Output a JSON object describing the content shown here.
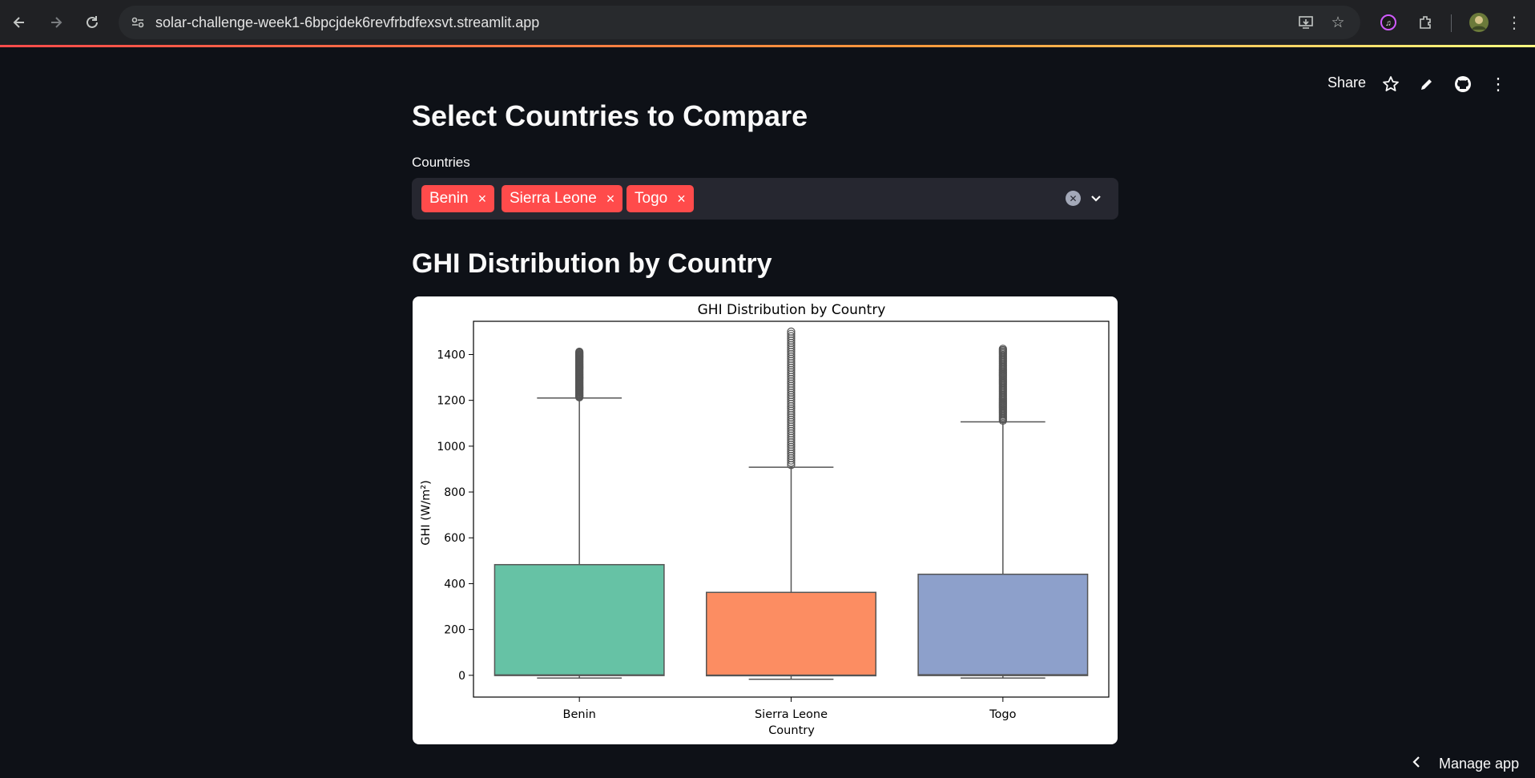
{
  "browser": {
    "url": "solar-challenge-week1-6bpcjdek6revfrbdfexsvt.streamlit.app",
    "icons": [
      "back-icon",
      "forward-icon",
      "reload-icon",
      "site-info-icon",
      "install-icon",
      "bookmark-star-icon",
      "music-extension-icon",
      "extensions-icon",
      "profile-avatar",
      "chrome-menu-icon"
    ]
  },
  "toolbar": {
    "share_label": "Share",
    "icons": [
      "star-icon",
      "edit-pencil-icon",
      "github-icon",
      "kebab-menu-icon"
    ]
  },
  "page": {
    "title": "Select Countries to Compare",
    "countries_label": "Countries",
    "selected": [
      "Benin",
      "Sierra Leone",
      "Togo"
    ],
    "tag_remove_glyph": "×",
    "chart_heading": "GHI Distribution by Country",
    "manage_app_label": "Manage app"
  },
  "colors": {
    "tag_red": "#ff4b4b",
    "benin": "#66c2a5",
    "sierra_leone": "#fc8d62",
    "togo": "#8da0cb",
    "background": "#0e1117",
    "widget_bg": "#262730"
  },
  "chart_data": {
    "type": "box",
    "title": "GHI Distribution by Country",
    "xlabel": "Country",
    "ylabel": "GHI (W/m²)",
    "ylim": [
      -95,
      1545
    ],
    "yticks": [
      0,
      200,
      400,
      600,
      800,
      1000,
      1200,
      1400
    ],
    "categories": [
      "Benin",
      "Sierra Leone",
      "Togo"
    ],
    "boxes": [
      {
        "name": "Benin",
        "whisker_low": -12,
        "q1": -1,
        "median": 1,
        "q3": 483,
        "whisker_high": 1210,
        "outlier_min": 1210,
        "outlier_max": 1412
      },
      {
        "name": "Sierra Leone",
        "whisker_low": -17,
        "q1": -2,
        "median": 0,
        "q3": 362,
        "whisker_high": 908,
        "outlier_min": 908,
        "outlier_max": 1500
      },
      {
        "name": "Togo",
        "whisker_low": -12,
        "q1": -1,
        "median": 2,
        "q3": 441,
        "whisker_high": 1106,
        "outlier_min": 1106,
        "outlier_max": 1425
      }
    ]
  }
}
